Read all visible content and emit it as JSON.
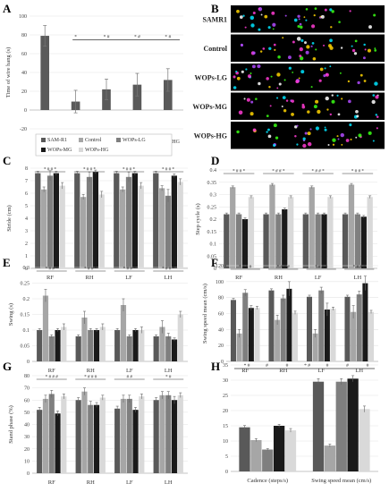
{
  "colors": {
    "SAM-R1": "#595959",
    "Control": "#a6a6a6",
    "WOPs-LG": "#7f7f7f",
    "WOPs-MG": "#1a1a1a",
    "WOPs-HG": "#d9d9d9",
    "footprint_bg": "#000000"
  },
  "panel_letters": [
    "A",
    "B",
    "C",
    "D",
    "E",
    "F",
    "G",
    "H"
  ],
  "legend": {
    "entries": [
      "SAM-R1",
      "Control",
      "WOPs-LG",
      "WOPs-MG",
      "WOPs-HG"
    ]
  },
  "footprints": {
    "rows": [
      "SAMR1",
      "Control",
      "WOPs-LG",
      "WOPs-MG",
      "WOPs-HG"
    ]
  },
  "chart_data": [
    {
      "panel": "A",
      "type": "bar",
      "categories": [
        "SAMR1",
        "Control",
        "WOPs-LG",
        "WOPs-MG",
        "WOPs-HG"
      ],
      "values": [
        79,
        9,
        22,
        27,
        32
      ],
      "errors": [
        11,
        12,
        11,
        12,
        12
      ],
      "ylabel": "Time of wire hang (s)",
      "ylim": [
        -20,
        100
      ],
      "yticks": [
        -20,
        0,
        20,
        40,
        60,
        80,
        100
      ],
      "annotations": [
        "*",
        "* #",
        "* #",
        "* #"
      ]
    },
    {
      "panel": "C",
      "type": "bar",
      "ylabel": "Stride (cm)",
      "categories": [
        "RF",
        "RH",
        "LF",
        "LH"
      ],
      "ylim": [
        0,
        8
      ],
      "yticks": [
        0,
        1,
        2,
        3,
        4,
        5,
        6,
        7,
        8
      ],
      "series": [
        {
          "name": "SAM-R1",
          "values": [
            7.6,
            7.6,
            7.6,
            7.6
          ],
          "errors": [
            0.15,
            0.15,
            0.15,
            0.15
          ]
        },
        {
          "name": "Control",
          "values": [
            6.3,
            5.7,
            6.3,
            6.4
          ],
          "errors": [
            0.2,
            0.2,
            0.2,
            0.2
          ]
        },
        {
          "name": "WOPs-LG",
          "values": [
            7.4,
            7.3,
            7.3,
            5.8
          ],
          "errors": [
            0.4,
            0.4,
            0.4,
            0.5
          ]
        },
        {
          "name": "WOPs-MG",
          "values": [
            7.6,
            7.7,
            7.6,
            7.4
          ],
          "errors": [
            0.15,
            0.15,
            0.15,
            0.15
          ]
        },
        {
          "name": "WOPs-HG",
          "values": [
            6.6,
            5.9,
            6.6,
            6.9
          ],
          "errors": [
            0.25,
            0.25,
            0.25,
            0.25
          ]
        }
      ],
      "annotations": [
        "* # # *",
        "* # # *",
        "* # # *",
        "* # # *"
      ]
    },
    {
      "panel": "D",
      "type": "bar",
      "ylabel": "Step cycle (s)",
      "categories": [
        "RF",
        "RH",
        "LF",
        "LH"
      ],
      "ylim": [
        0,
        0.4
      ],
      "yticks": [
        0,
        0.05,
        0.1,
        0.15,
        0.2,
        0.25,
        0.3,
        0.35,
        0.4
      ],
      "series": [
        {
          "name": "SAM-R1",
          "values": [
            0.22,
            0.22,
            0.22,
            0.22
          ],
          "errors": [
            0.005,
            0.005,
            0.005,
            0.005
          ]
        },
        {
          "name": "Control",
          "values": [
            0.33,
            0.34,
            0.33,
            0.34
          ],
          "errors": [
            0.005,
            0.005,
            0.005,
            0.005
          ]
        },
        {
          "name": "WOPs-LG",
          "values": [
            0.22,
            0.22,
            0.22,
            0.22
          ],
          "errors": [
            0.005,
            0.005,
            0.005,
            0.005
          ]
        },
        {
          "name": "WOPs-MG",
          "values": [
            0.2,
            0.24,
            0.22,
            0.21
          ],
          "errors": [
            0.005,
            0.005,
            0.005,
            0.005
          ]
        },
        {
          "name": "WOPs-HG",
          "values": [
            0.29,
            0.29,
            0.29,
            0.29
          ],
          "errors": [
            0.005,
            0.005,
            0.005,
            0.005
          ]
        }
      ],
      "annotations": [
        "* # # *",
        "* # # *",
        "* # # *",
        "* # # *"
      ]
    },
    {
      "panel": "E",
      "type": "bar",
      "ylabel": "Swing (s)",
      "categories": [
        "RF",
        "RH",
        "LF",
        "LH"
      ],
      "ylim": [
        0,
        0.3
      ],
      "yticks": [
        0,
        0.05,
        0.1,
        0.15,
        0.2,
        0.25,
        0.3
      ],
      "series": [
        {
          "name": "SAM-R1",
          "values": [
            0.1,
            0.08,
            0.1,
            0.08
          ],
          "errors": [
            0.005,
            0.005,
            0.005,
            0.005
          ]
        },
        {
          "name": "Control",
          "values": [
            0.21,
            0.14,
            0.18,
            0.11
          ],
          "errors": [
            0.02,
            0.02,
            0.02,
            0.02
          ]
        },
        {
          "name": "WOPs-LG",
          "values": [
            0.08,
            0.1,
            0.08,
            0.08
          ],
          "errors": [
            0.005,
            0.005,
            0.005,
            0.01
          ]
        },
        {
          "name": "WOPs-MG",
          "values": [
            0.1,
            0.1,
            0.1,
            0.07
          ],
          "errors": [
            0.005,
            0.005,
            0.005,
            0.005
          ]
        },
        {
          "name": "WOPs-HG",
          "values": [
            0.11,
            0.11,
            0.1,
            0.15
          ],
          "errors": [
            0.01,
            0.01,
            0.01,
            0.01
          ]
        }
      ],
      "annotations": [
        "* # # *",
        "* # # *",
        "* # # *",
        "* # # *"
      ]
    },
    {
      "panel": "F",
      "type": "bar",
      "ylabel": "Swing speed mean (cm/s)",
      "categories": [
        "RF",
        "RH",
        "LF",
        "LH"
      ],
      "ylim": [
        0,
        120
      ],
      "yticks": [
        0,
        20,
        40,
        60,
        80,
        100,
        120
      ],
      "series": [
        {
          "name": "SAM-R1",
          "values": [
            77,
            89,
            81,
            81
          ],
          "errors": [
            2,
            2,
            2,
            2
          ]
        },
        {
          "name": "Control",
          "values": [
            35,
            52,
            35,
            62
          ],
          "errors": [
            5,
            6,
            5,
            8
          ]
        },
        {
          "name": "WOPs-LG",
          "values": [
            86,
            79,
            89,
            84
          ],
          "errors": [
            4,
            4,
            4,
            4
          ]
        },
        {
          "name": "WOPs-MG",
          "values": [
            67,
            91,
            65,
            98
          ],
          "errors": [
            3,
            9,
            8,
            9
          ]
        },
        {
          "name": "WOPs-HG",
          "values": [
            67,
            61,
            66,
            62
          ],
          "errors": [
            2,
            2,
            2,
            2
          ]
        }
      ],
      "annotations": [
        "* # # #",
        "* # # #",
        "* # # #",
        "* # # #"
      ]
    },
    {
      "panel": "G",
      "type": "bar",
      "ylabel": "Stand phase (%)",
      "categories": [
        "RF",
        "RH",
        "LF",
        "LH"
      ],
      "ylim": [
        0,
        80
      ],
      "yticks": [
        0,
        10,
        20,
        30,
        40,
        50,
        60,
        70,
        80
      ],
      "series": [
        {
          "name": "SAM-R1",
          "values": [
            52,
            60,
            53,
            60
          ],
          "errors": [
            2,
            2,
            2,
            2
          ]
        },
        {
          "name": "Control",
          "values": [
            61,
            67,
            61,
            64
          ],
          "errors": [
            3,
            3,
            3,
            3
          ]
        },
        {
          "name": "WOPs-LG",
          "values": [
            65,
            56,
            61,
            64
          ],
          "errors": [
            3,
            3,
            3,
            3
          ]
        },
        {
          "name": "WOPs-MG",
          "values": [
            49,
            56,
            52,
            60
          ],
          "errors": [
            2,
            2,
            2,
            3
          ]
        },
        {
          "name": "WOPs-HG",
          "values": [
            63,
            62,
            63,
            64
          ],
          "errors": [
            2,
            2,
            2,
            2
          ]
        }
      ],
      "annotations": [
        "* # # #",
        "* # # #",
        "# #",
        "* #"
      ]
    },
    {
      "panel": "H",
      "type": "bar",
      "categories": [
        "Cadence (steps/s)",
        "Swing speed mean (cm/s)"
      ],
      "ylim": [
        0,
        35
      ],
      "yticks": [
        0,
        5,
        10,
        15,
        20,
        25,
        30,
        35
      ],
      "series": [
        {
          "name": "SAM-R1",
          "values": [
            14.5,
            29.5
          ],
          "errors": [
            0.6,
            1
          ]
        },
        {
          "name": "Control",
          "values": [
            10.3,
            8.5
          ],
          "errors": [
            0.5,
            0.5
          ]
        },
        {
          "name": "WOPs-LG",
          "values": [
            7.2,
            29.5
          ],
          "errors": [
            0.3,
            1
          ]
        },
        {
          "name": "WOPs-MG",
          "values": [
            15,
            30.5
          ],
          "errors": [
            0.5,
            1
          ]
        },
        {
          "name": "WOPs-HG",
          "values": [
            13.5,
            20.5
          ],
          "errors": [
            0.6,
            1
          ]
        }
      ],
      "annotations": [
        "* #",
        "#",
        "#",
        "* #",
        "#",
        "#",
        "#"
      ]
    }
  ]
}
